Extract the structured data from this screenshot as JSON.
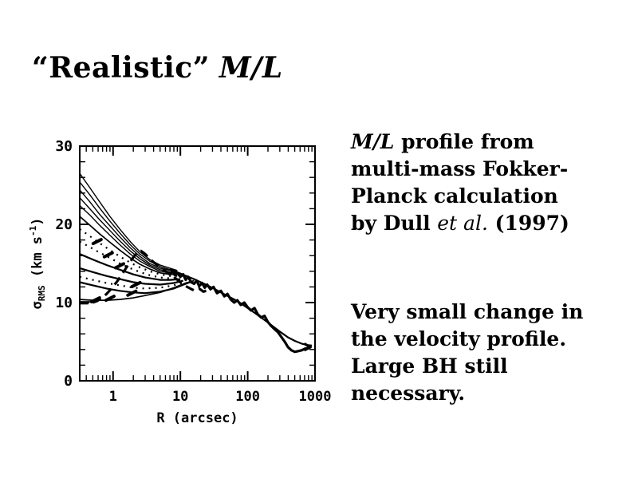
{
  "slide": {
    "background": "#ffffff",
    "text_color": "#000000",
    "title": {
      "text": "“Realistic”",
      "math": "M/L"
    },
    "notes": {
      "para1_math": "M/L",
      "para1_body": " profile from multi-mass Fokker-Planck calculation by Dull ",
      "para1_etal": "et al.",
      "para1_year": " (1997)",
      "para2": "Very small change in the velocity profile. Large BH still necessary."
    }
  },
  "chart_data": {
    "type": "line",
    "title": "",
    "xlabel": "R (arcsec)",
    "ylabel": "sigma_RMS (km s^-1)",
    "ylabel_parts": {
      "symbol": "σ",
      "subscript": "RMS",
      "units_open": " (km s",
      "exponent": "-1",
      "units_close": ")"
    },
    "x_scale": "log",
    "y_scale": "linear",
    "xlim": [
      0.32,
      1000
    ],
    "ylim": [
      0,
      30
    ],
    "x_ticks": [
      {
        "value": 1,
        "label": "1"
      },
      {
        "value": 10,
        "label": "10"
      },
      {
        "value": 100,
        "label": "100"
      },
      {
        "value": 1000,
        "label": "1000"
      }
    ],
    "y_ticks": [
      {
        "value": 0,
        "label": "0"
      },
      {
        "value": 10,
        "label": "10"
      },
      {
        "value": 20,
        "label": "20"
      },
      {
        "value": 30,
        "label": "30"
      }
    ],
    "y_minor_step": 2,
    "grid": false,
    "line_color": "#000000",
    "series": [
      {
        "name": "model-fan-1",
        "style": "solid",
        "width": 1.4,
        "points": [
          [
            0.32,
            26.5
          ],
          [
            0.45,
            24.7
          ],
          [
            0.63,
            22.9
          ],
          [
            0.9,
            21.0
          ],
          [
            1.26,
            19.4
          ],
          [
            1.8,
            17.8
          ],
          [
            2.5,
            16.5
          ],
          [
            3.5,
            15.5
          ],
          [
            5,
            14.8
          ],
          [
            7,
            14.4
          ],
          [
            9,
            14.1
          ]
        ]
      },
      {
        "name": "model-fan-2",
        "style": "solid",
        "width": 1.4,
        "points": [
          [
            0.32,
            25.4
          ],
          [
            0.45,
            23.8
          ],
          [
            0.63,
            22.1
          ],
          [
            0.9,
            20.4
          ],
          [
            1.26,
            18.9
          ],
          [
            1.8,
            17.4
          ],
          [
            2.5,
            16.2
          ],
          [
            3.5,
            15.3
          ],
          [
            5,
            14.6
          ],
          [
            7,
            14.2
          ],
          [
            9,
            14.0
          ]
        ]
      },
      {
        "name": "model-fan-3",
        "style": "solid",
        "width": 1.4,
        "points": [
          [
            0.32,
            24.4
          ],
          [
            0.45,
            22.9
          ],
          [
            0.63,
            21.3
          ],
          [
            0.9,
            19.8
          ],
          [
            1.26,
            18.4
          ],
          [
            1.8,
            17.0
          ],
          [
            2.5,
            15.9
          ],
          [
            3.5,
            15.0
          ],
          [
            5,
            14.4
          ],
          [
            7,
            14.1
          ],
          [
            9,
            13.9
          ]
        ]
      },
      {
        "name": "model-fan-4",
        "style": "solid",
        "width": 1.4,
        "points": [
          [
            0.32,
            23.4
          ],
          [
            0.45,
            22.0
          ],
          [
            0.63,
            20.6
          ],
          [
            0.9,
            19.2
          ],
          [
            1.26,
            17.9
          ],
          [
            1.8,
            16.6
          ],
          [
            2.5,
            15.6
          ],
          [
            3.5,
            14.8
          ],
          [
            5,
            14.2
          ],
          [
            7,
            13.9
          ],
          [
            9,
            13.8
          ]
        ]
      },
      {
        "name": "model-fan-5",
        "style": "solid",
        "width": 1.4,
        "points": [
          [
            0.32,
            22.4
          ],
          [
            0.45,
            21.2
          ],
          [
            0.63,
            19.9
          ],
          [
            0.9,
            18.6
          ],
          [
            1.26,
            17.4
          ],
          [
            1.8,
            16.2
          ],
          [
            2.5,
            15.3
          ],
          [
            3.5,
            14.6
          ],
          [
            5,
            14.0
          ],
          [
            7,
            13.8
          ],
          [
            9,
            13.7
          ]
        ]
      },
      {
        "name": "model-fan-6",
        "style": "solid",
        "width": 1.7,
        "points": [
          [
            0.32,
            21.0
          ],
          [
            0.45,
            19.9
          ],
          [
            0.63,
            18.8
          ],
          [
            0.9,
            17.7
          ],
          [
            1.26,
            16.7
          ],
          [
            1.8,
            15.7
          ],
          [
            2.5,
            14.9
          ],
          [
            3.5,
            14.3
          ],
          [
            5,
            13.8
          ],
          [
            7,
            13.6
          ],
          [
            9,
            13.6
          ]
        ]
      },
      {
        "name": "model-dotted-1",
        "style": "dotted",
        "width": 2.2,
        "points": [
          [
            0.32,
            19.4
          ],
          [
            0.45,
            18.5
          ],
          [
            0.63,
            17.6
          ],
          [
            0.9,
            16.7
          ],
          [
            1.26,
            15.9
          ],
          [
            1.8,
            15.1
          ],
          [
            2.5,
            14.5
          ],
          [
            3.5,
            14.0
          ],
          [
            5,
            13.6
          ],
          [
            7,
            13.4
          ],
          [
            9,
            13.4
          ]
        ]
      },
      {
        "name": "model-dotted-2",
        "style": "dotted",
        "width": 2.2,
        "points": [
          [
            0.32,
            17.8
          ],
          [
            0.45,
            17.1
          ],
          [
            0.63,
            16.4
          ],
          [
            0.9,
            15.7
          ],
          [
            1.26,
            15.0
          ],
          [
            1.8,
            14.4
          ],
          [
            2.5,
            13.9
          ],
          [
            3.5,
            13.5
          ],
          [
            5,
            13.2
          ],
          [
            7,
            13.1
          ],
          [
            9,
            13.2
          ]
        ]
      },
      {
        "name": "model-mid-1",
        "style": "solid",
        "width": 2.2,
        "points": [
          [
            0.32,
            16.2
          ],
          [
            0.5,
            15.5
          ],
          [
            0.8,
            14.8
          ],
          [
            1.26,
            14.2
          ],
          [
            2,
            13.6
          ],
          [
            3,
            13.2
          ],
          [
            5,
            12.9
          ],
          [
            7,
            12.9
          ],
          [
            10,
            13.0
          ]
        ]
      },
      {
        "name": "model-mid-2",
        "style": "solid",
        "width": 2.2,
        "points": [
          [
            0.32,
            14.4
          ],
          [
            0.5,
            13.9
          ],
          [
            0.8,
            13.4
          ],
          [
            1.26,
            13.0
          ],
          [
            2,
            12.6
          ],
          [
            3,
            12.4
          ],
          [
            5,
            12.3
          ],
          [
            8,
            12.5
          ],
          [
            11,
            12.8
          ]
        ]
      },
      {
        "name": "model-dotted-3",
        "style": "dotted",
        "width": 2.2,
        "points": [
          [
            0.32,
            13.3
          ],
          [
            0.5,
            12.9
          ],
          [
            0.8,
            12.5
          ],
          [
            1.26,
            12.2
          ],
          [
            2,
            11.9
          ],
          [
            3,
            11.8
          ],
          [
            5,
            11.9
          ],
          [
            8,
            12.2
          ],
          [
            12,
            12.6
          ]
        ]
      },
      {
        "name": "model-mid-3",
        "style": "solid",
        "width": 2.2,
        "points": [
          [
            0.32,
            12.6
          ],
          [
            0.5,
            12.2
          ],
          [
            0.8,
            11.8
          ],
          [
            1.26,
            11.5
          ],
          [
            2,
            11.3
          ],
          [
            3,
            11.2
          ],
          [
            5,
            11.4
          ],
          [
            8,
            11.8
          ],
          [
            12,
            12.4
          ],
          [
            15,
            12.7
          ]
        ]
      },
      {
        "name": "model-mid-4",
        "style": "solid",
        "width": 1.7,
        "points": [
          [
            0.32,
            10.4
          ],
          [
            0.5,
            10.3
          ],
          [
            0.8,
            10.3
          ],
          [
            1.26,
            10.4
          ],
          [
            2,
            10.6
          ],
          [
            3,
            10.9
          ],
          [
            5,
            11.3
          ],
          [
            8,
            11.9
          ],
          [
            12,
            12.5
          ],
          [
            16,
            12.8
          ]
        ]
      },
      {
        "name": "flat-segment-1",
        "style": "solid",
        "width": 1.7,
        "points": [
          [
            0.32,
            10.1
          ],
          [
            0.46,
            10.1
          ]
        ]
      },
      {
        "name": "flat-segment-2",
        "style": "solid",
        "width": 1.7,
        "points": [
          [
            0.32,
            9.85
          ],
          [
            0.43,
            9.85
          ]
        ]
      },
      {
        "name": "observed-dashed",
        "style": "dashed",
        "width": 3.2,
        "points": [
          [
            0.5,
            10.0
          ],
          [
            0.58,
            10.2
          ],
          [
            0.68,
            10.6
          ],
          [
            0.8,
            11.1
          ],
          [
            0.95,
            11.8
          ],
          [
            1.15,
            12.7
          ],
          [
            1.4,
            13.8
          ],
          [
            1.7,
            14.9
          ],
          [
            2.0,
            15.8
          ],
          [
            2.3,
            16.4
          ],
          [
            2.6,
            16.6
          ],
          [
            3.0,
            16.2
          ],
          [
            3.5,
            15.6
          ],
          [
            4.2,
            15.0
          ],
          [
            5.0,
            14.5
          ],
          [
            6.0,
            14.0
          ],
          [
            7.0,
            13.6
          ],
          [
            8.5,
            13.1
          ],
          [
            10,
            12.6
          ],
          [
            12,
            12.1
          ],
          [
            14,
            11.8
          ],
          [
            16.5,
            11.5
          ],
          [
            19,
            11.8
          ],
          [
            22,
            11.4
          ],
          [
            26,
            11.6
          ]
        ]
      },
      {
        "name": "model-outer",
        "style": "solid",
        "width": 2.2,
        "points": [
          [
            7,
            14.3
          ],
          [
            8,
            14.05
          ],
          [
            10,
            13.7
          ],
          [
            13,
            13.3
          ],
          [
            16,
            13.0
          ],
          [
            20,
            12.6
          ],
          [
            25,
            12.2
          ],
          [
            32,
            11.75
          ],
          [
            40,
            11.3
          ],
          [
            50,
            10.85
          ],
          [
            63,
            10.4
          ],
          [
            79,
            9.9
          ],
          [
            100,
            9.3
          ],
          [
            126,
            8.7
          ],
          [
            158,
            8.1
          ],
          [
            200,
            7.45
          ],
          [
            251,
            6.8
          ],
          [
            316,
            6.15
          ],
          [
            398,
            5.55
          ],
          [
            501,
            5.1
          ],
          [
            631,
            4.75
          ],
          [
            794,
            4.55
          ],
          [
            900,
            4.5
          ]
        ]
      },
      {
        "name": "observed-data",
        "style": "solid",
        "width": 3.2,
        "points": [
          [
            6.3,
            13.9
          ],
          [
            7,
            13.6
          ],
          [
            7.6,
            14.0
          ],
          [
            8.3,
            13.5
          ],
          [
            9,
            13.8
          ],
          [
            10,
            13.3
          ],
          [
            11,
            13.6
          ],
          [
            12,
            12.9
          ],
          [
            13,
            13.3
          ],
          [
            14.5,
            12.6
          ],
          [
            16,
            12.4
          ],
          [
            17.5,
            12.8
          ],
          [
            19,
            12.1
          ],
          [
            21,
            12.5
          ],
          [
            23,
            11.9
          ],
          [
            25,
            12.3
          ],
          [
            28,
            11.7
          ],
          [
            31,
            12.0
          ],
          [
            35,
            11.2
          ],
          [
            40,
            11.5
          ],
          [
            45,
            10.8
          ],
          [
            50,
            11.1
          ],
          [
            56,
            10.4
          ],
          [
            63,
            10.0
          ],
          [
            70,
            10.3
          ],
          [
            79,
            9.7
          ],
          [
            89,
            10.0
          ],
          [
            100,
            9.4
          ],
          [
            112,
            9.0
          ],
          [
            126,
            9.3
          ],
          [
            141,
            8.5
          ],
          [
            158,
            8.1
          ],
          [
            178,
            8.3
          ],
          [
            200,
            7.5
          ],
          [
            224,
            7.0
          ],
          [
            251,
            6.6
          ],
          [
            282,
            6.2
          ],
          [
            316,
            5.6
          ],
          [
            355,
            5.0
          ],
          [
            398,
            4.3
          ],
          [
            447,
            3.9
          ],
          [
            501,
            3.7
          ],
          [
            562,
            3.8
          ],
          [
            631,
            3.9
          ],
          [
            708,
            4.1
          ],
          [
            794,
            4.2
          ],
          [
            850,
            4.3
          ]
        ]
      },
      {
        "name": "arrowhead",
        "style": "solid",
        "width": 3.2,
        "points": [
          [
            690,
            4.75
          ],
          [
            855,
            4.3
          ],
          [
            690,
            3.9
          ]
        ]
      }
    ],
    "markers": [
      [
        0.55,
        10.35
      ],
      [
        0.9,
        10.55
      ],
      [
        1.9,
        11.2
      ],
      [
        0.58,
        17.8
      ],
      [
        0.85,
        16.1
      ],
      [
        1.25,
        14.7
      ],
      [
        2.2,
        12.3
      ]
    ]
  }
}
